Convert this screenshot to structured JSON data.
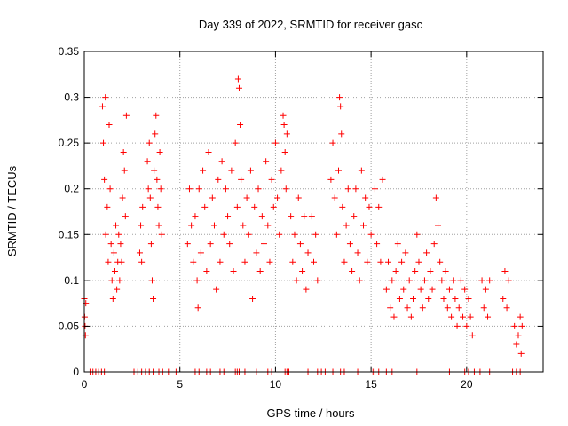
{
  "chart_data": {
    "type": "scatter",
    "title": "Day 339 of 2022, SRMTID for receiver gasc",
    "xlabel": "GPS time / hours",
    "ylabel": "SRMTID / TECUs",
    "xlim": [
      0,
      24
    ],
    "ylim": [
      0,
      0.35
    ],
    "xticks": [
      0,
      5,
      10,
      15,
      20
    ],
    "xtick_labels": [
      "0",
      "5",
      "10",
      "15",
      "20"
    ],
    "yticks": [
      0,
      0.05,
      0.1,
      0.15,
      0.2,
      0.25,
      0.3,
      0.35
    ],
    "ytick_labels": [
      "0",
      "0.05",
      "0.1",
      "0.15",
      "0.2",
      "0.25",
      "0.3",
      "0.35"
    ],
    "grid": true,
    "marker": "+",
    "color": "#ff0000",
    "series": [
      {
        "name": "SRMTID",
        "points": [
          [
            0.0,
            0.08
          ],
          [
            0.02,
            0.06
          ],
          [
            0.04,
            0.05
          ],
          [
            0.06,
            0.04
          ],
          [
            0.08,
            0.075
          ],
          [
            0.95,
            0.29
          ],
          [
            1.0,
            0.25
          ],
          [
            1.05,
            0.21
          ],
          [
            1.1,
            0.3
          ],
          [
            1.12,
            0.15
          ],
          [
            1.2,
            0.18
          ],
          [
            1.25,
            0.12
          ],
          [
            1.3,
            0.27
          ],
          [
            1.35,
            0.2
          ],
          [
            1.4,
            0.14
          ],
          [
            1.45,
            0.1
          ],
          [
            1.5,
            0.08
          ],
          [
            1.55,
            0.13
          ],
          [
            1.6,
            0.11
          ],
          [
            1.65,
            0.16
          ],
          [
            1.7,
            0.09
          ],
          [
            1.75,
            0.12
          ],
          [
            1.8,
            0.15
          ],
          [
            1.85,
            0.1
          ],
          [
            1.9,
            0.14
          ],
          [
            1.95,
            0.12
          ],
          [
            2.0,
            0.19
          ],
          [
            2.05,
            0.24
          ],
          [
            2.1,
            0.22
          ],
          [
            2.15,
            0.17
          ],
          [
            2.2,
            0.28
          ],
          [
            2.9,
            0.13
          ],
          [
            2.95,
            0.16
          ],
          [
            3.0,
            0.12
          ],
          [
            3.05,
            0.18
          ],
          [
            3.3,
            0.23
          ],
          [
            3.35,
            0.2
          ],
          [
            3.4,
            0.25
          ],
          [
            3.45,
            0.19
          ],
          [
            3.5,
            0.14
          ],
          [
            3.55,
            0.1
          ],
          [
            3.6,
            0.08
          ],
          [
            3.65,
            0.22
          ],
          [
            3.7,
            0.26
          ],
          [
            3.75,
            0.28
          ],
          [
            3.8,
            0.21
          ],
          [
            3.85,
            0.18
          ],
          [
            3.9,
            0.16
          ],
          [
            3.95,
            0.24
          ],
          [
            4.0,
            0.2
          ],
          [
            4.05,
            0.15
          ],
          [
            5.4,
            0.14
          ],
          [
            5.5,
            0.2
          ],
          [
            5.6,
            0.16
          ],
          [
            5.7,
            0.12
          ],
          [
            5.8,
            0.17
          ],
          [
            5.9,
            0.1
          ],
          [
            5.95,
            0.07
          ],
          [
            6.0,
            0.2
          ],
          [
            6.1,
            0.13
          ],
          [
            6.2,
            0.22
          ],
          [
            6.3,
            0.18
          ],
          [
            6.4,
            0.11
          ],
          [
            6.5,
            0.24
          ],
          [
            6.6,
            0.14
          ],
          [
            6.7,
            0.19
          ],
          [
            6.8,
            0.16
          ],
          [
            6.9,
            0.09
          ],
          [
            7.0,
            0.21
          ],
          [
            7.1,
            0.12
          ],
          [
            7.2,
            0.23
          ],
          [
            7.3,
            0.15
          ],
          [
            7.4,
            0.2
          ],
          [
            7.5,
            0.17
          ],
          [
            7.6,
            0.14
          ],
          [
            7.7,
            0.22
          ],
          [
            7.8,
            0.11
          ],
          [
            7.9,
            0.25
          ],
          [
            8.0,
            0.18
          ],
          [
            8.05,
            0.32
          ],
          [
            8.1,
            0.31
          ],
          [
            8.15,
            0.27
          ],
          [
            8.2,
            0.21
          ],
          [
            8.3,
            0.16
          ],
          [
            8.4,
            0.12
          ],
          [
            8.5,
            0.19
          ],
          [
            8.6,
            0.15
          ],
          [
            8.7,
            0.22
          ],
          [
            8.8,
            0.08
          ],
          [
            8.9,
            0.18
          ],
          [
            9.0,
            0.13
          ],
          [
            9.1,
            0.2
          ],
          [
            9.2,
            0.11
          ],
          [
            9.3,
            0.17
          ],
          [
            9.4,
            0.14
          ],
          [
            9.5,
            0.23
          ],
          [
            9.6,
            0.16
          ],
          [
            9.7,
            0.12
          ],
          [
            9.8,
            0.21
          ],
          [
            9.9,
            0.18
          ],
          [
            10.0,
            0.25
          ],
          [
            10.1,
            0.19
          ],
          [
            10.2,
            0.15
          ],
          [
            10.3,
            0.22
          ],
          [
            10.4,
            0.28
          ],
          [
            10.45,
            0.27
          ],
          [
            10.5,
            0.24
          ],
          [
            10.55,
            0.2
          ],
          [
            10.6,
            0.26
          ],
          [
            10.8,
            0.17
          ],
          [
            10.9,
            0.12
          ],
          [
            11.0,
            0.15
          ],
          [
            11.1,
            0.1
          ],
          [
            11.2,
            0.19
          ],
          [
            11.3,
            0.14
          ],
          [
            11.4,
            0.11
          ],
          [
            11.5,
            0.17
          ],
          [
            11.6,
            0.09
          ],
          [
            11.7,
            0.13
          ],
          [
            11.9,
            0.17
          ],
          [
            12.0,
            0.12
          ],
          [
            12.1,
            0.15
          ],
          [
            12.2,
            0.1
          ],
          [
            12.9,
            0.21
          ],
          [
            13.0,
            0.25
          ],
          [
            13.1,
            0.19
          ],
          [
            13.2,
            0.15
          ],
          [
            13.3,
            0.22
          ],
          [
            13.35,
            0.3
          ],
          [
            13.4,
            0.29
          ],
          [
            13.45,
            0.26
          ],
          [
            13.5,
            0.18
          ],
          [
            13.6,
            0.12
          ],
          [
            13.7,
            0.16
          ],
          [
            13.8,
            0.2
          ],
          [
            13.9,
            0.14
          ],
          [
            14.0,
            0.11
          ],
          [
            14.1,
            0.17
          ],
          [
            14.2,
            0.2
          ],
          [
            14.3,
            0.13
          ],
          [
            14.4,
            0.1
          ],
          [
            14.5,
            0.22
          ],
          [
            14.6,
            0.16
          ],
          [
            14.7,
            0.19
          ],
          [
            14.8,
            0.12
          ],
          [
            14.9,
            0.18
          ],
          [
            15.0,
            0.15
          ],
          [
            15.2,
            0.2
          ],
          [
            15.3,
            0.14
          ],
          [
            15.4,
            0.18
          ],
          [
            15.5,
            0.12
          ],
          [
            15.6,
            0.21
          ],
          [
            15.8,
            0.09
          ],
          [
            15.9,
            0.12
          ],
          [
            16.0,
            0.07
          ],
          [
            16.1,
            0.1
          ],
          [
            16.2,
            0.06
          ],
          [
            16.3,
            0.11
          ],
          [
            16.4,
            0.14
          ],
          [
            16.5,
            0.08
          ],
          [
            16.6,
            0.12
          ],
          [
            16.7,
            0.09
          ],
          [
            16.8,
            0.13
          ],
          [
            16.9,
            0.07
          ],
          [
            17.0,
            0.1
          ],
          [
            17.1,
            0.06
          ],
          [
            17.2,
            0.08
          ],
          [
            17.3,
            0.11
          ],
          [
            17.4,
            0.15
          ],
          [
            17.5,
            0.12
          ],
          [
            17.6,
            0.09
          ],
          [
            17.7,
            0.07
          ],
          [
            17.8,
            0.1
          ],
          [
            17.9,
            0.13
          ],
          [
            18.0,
            0.08
          ],
          [
            18.1,
            0.11
          ],
          [
            18.2,
            0.09
          ],
          [
            18.3,
            0.14
          ],
          [
            18.4,
            0.19
          ],
          [
            18.5,
            0.16
          ],
          [
            18.6,
            0.12
          ],
          [
            18.7,
            0.1
          ],
          [
            18.8,
            0.08
          ],
          [
            18.9,
            0.11
          ],
          [
            19.0,
            0.07
          ],
          [
            19.1,
            0.09
          ],
          [
            19.2,
            0.06
          ],
          [
            19.3,
            0.1
          ],
          [
            19.4,
            0.08
          ],
          [
            19.5,
            0.05
          ],
          [
            19.6,
            0.07
          ],
          [
            19.7,
            0.1
          ],
          [
            19.8,
            0.06
          ],
          [
            19.9,
            0.09
          ],
          [
            20.0,
            0.05
          ],
          [
            20.1,
            0.08
          ],
          [
            20.2,
            0.06
          ],
          [
            20.3,
            0.04
          ],
          [
            20.8,
            0.1
          ],
          [
            20.9,
            0.07
          ],
          [
            21.0,
            0.09
          ],
          [
            21.1,
            0.06
          ],
          [
            21.2,
            0.1
          ],
          [
            21.9,
            0.08
          ],
          [
            22.0,
            0.11
          ],
          [
            22.1,
            0.07
          ],
          [
            22.2,
            0.1
          ],
          [
            22.5,
            0.05
          ],
          [
            22.6,
            0.03
          ],
          [
            22.7,
            0.04
          ],
          [
            22.8,
            0.06
          ],
          [
            22.85,
            0.02
          ],
          [
            22.9,
            0.05
          ]
        ]
      },
      {
        "name": "zero",
        "x": [
          0.3,
          0.45,
          0.6,
          0.75,
          0.9,
          1.05,
          2.6,
          2.8,
          3.0,
          3.2,
          3.4,
          3.6,
          3.9,
          4.1,
          4.4,
          4.8,
          5.8,
          6.0,
          6.4,
          6.6,
          7.1,
          7.3,
          7.9,
          8.0,
          8.1,
          8.4,
          9.0,
          9.6,
          9.8,
          10.5,
          10.6,
          10.7,
          11.7,
          12.2,
          12.4,
          12.6,
          13.0,
          13.4,
          13.6,
          14.3,
          15.1,
          15.2,
          15.4,
          15.8,
          16.1,
          17.4,
          19.1,
          19.9,
          20.1,
          20.4,
          20.7,
          21.2,
          22.4,
          22.6,
          22.8
        ]
      }
    ]
  }
}
